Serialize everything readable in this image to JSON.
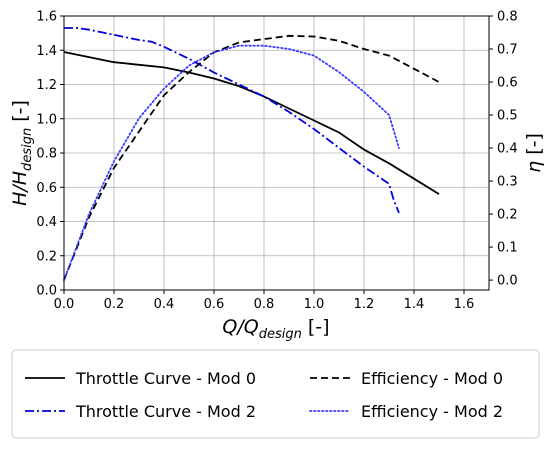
{
  "chart_data": {
    "type": "line",
    "xlabel": {
      "base": "Q/Q",
      "sub": "design",
      "unit": " [-]"
    },
    "ylabel_left": {
      "base": "H/H",
      "sub": "design",
      "unit": " [-]"
    },
    "ylabel_right": {
      "symbol": "η",
      "unit": " [-]"
    },
    "xlim": [
      0.0,
      1.7
    ],
    "ylim_left": [
      0.0,
      1.6
    ],
    "ylim_right": [
      -0.03,
      0.8
    ],
    "x_ticks": [
      "0.0",
      "0.2",
      "0.4",
      "0.6",
      "0.8",
      "1.0",
      "1.2",
      "1.4",
      "1.6"
    ],
    "y_left_ticks": [
      "0.0",
      "0.2",
      "0.4",
      "0.6",
      "0.8",
      "1.0",
      "1.2",
      "1.4",
      "1.6"
    ],
    "y_right_ticks": [
      "0.0",
      "0.1",
      "0.2",
      "0.3",
      "0.4",
      "0.5",
      "0.6",
      "0.7",
      "0.8"
    ],
    "grid": true,
    "legend_position": "below-plot",
    "series": [
      {
        "name": "Throttle Curve - Mod 0",
        "axis": "left",
        "color": "#000000",
        "style": "solid",
        "x": [
          0.0,
          0.1,
          0.2,
          0.3,
          0.4,
          0.5,
          0.6,
          0.7,
          0.8,
          0.9,
          1.0,
          1.1,
          1.2,
          1.3,
          1.4,
          1.5
        ],
        "y": [
          1.39,
          1.36,
          1.33,
          1.315,
          1.3,
          1.27,
          1.235,
          1.19,
          1.13,
          1.06,
          0.99,
          0.92,
          0.82,
          0.74,
          0.65,
          0.56
        ]
      },
      {
        "name": "Throttle Curve - Mod 2",
        "axis": "left",
        "color": "#0000e0",
        "style": "dashdot",
        "x": [
          0.0,
          0.05,
          0.1,
          0.2,
          0.3,
          0.35,
          0.4,
          0.5,
          0.6,
          0.7,
          0.8,
          0.9,
          1.0,
          1.1,
          1.2,
          1.3,
          1.32,
          1.34
        ],
        "y": [
          1.53,
          1.53,
          1.52,
          1.49,
          1.46,
          1.45,
          1.42,
          1.35,
          1.27,
          1.2,
          1.13,
          1.04,
          0.94,
          0.83,
          0.72,
          0.62,
          0.52,
          0.45
        ]
      },
      {
        "name": "Efficiency - Mod 0",
        "axis": "right",
        "color": "#000000",
        "style": "dashed",
        "x": [
          0.0,
          0.1,
          0.2,
          0.3,
          0.4,
          0.5,
          0.6,
          0.7,
          0.8,
          0.9,
          1.0,
          1.1,
          1.2,
          1.3,
          1.4,
          1.5
        ],
        "y": [
          0.0,
          0.19,
          0.34,
          0.45,
          0.56,
          0.63,
          0.69,
          0.72,
          0.73,
          0.74,
          0.738,
          0.725,
          0.7,
          0.68,
          0.64,
          0.6
        ]
      },
      {
        "name": "Efficiency - Mod 2",
        "axis": "right",
        "color": "#3a3aff",
        "style": "dotted",
        "x": [
          0.0,
          0.1,
          0.2,
          0.3,
          0.4,
          0.5,
          0.6,
          0.7,
          0.8,
          0.9,
          1.0,
          1.1,
          1.2,
          1.3,
          1.32,
          1.34
        ],
        "y": [
          0.0,
          0.2,
          0.36,
          0.49,
          0.58,
          0.65,
          0.69,
          0.71,
          0.71,
          0.7,
          0.68,
          0.63,
          0.57,
          0.5,
          0.45,
          0.4
        ]
      }
    ]
  }
}
